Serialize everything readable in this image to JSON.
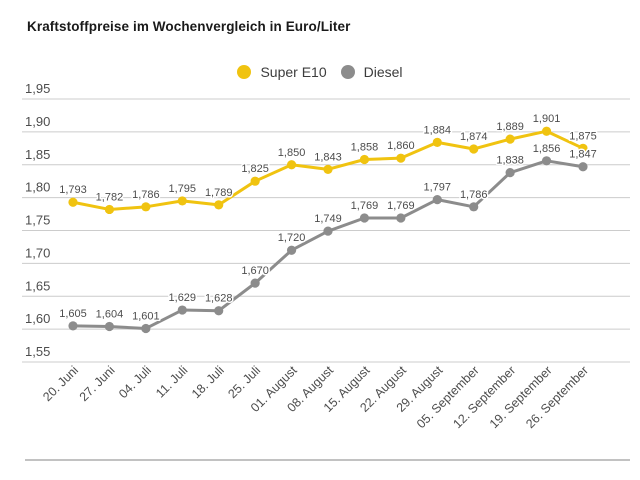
{
  "title": "Kraftstoffpreise im Wochenvergleich in Euro/Liter",
  "legend": [
    {
      "label": "Super E10",
      "color": "#F0C310"
    },
    {
      "label": "Diesel",
      "color": "#8C8C8C"
    }
  ],
  "chart_data": {
    "type": "line",
    "title": "Kraftstoffpreise im Wochenvergleich in Euro/Liter",
    "xlabel": "",
    "ylabel": "Euro/Liter",
    "categories": [
      "20. Juni",
      "27. Juni",
      "04. Juli",
      "11. Juli",
      "18. Juli",
      "25. Juli",
      "01. August",
      "08. August",
      "15. August",
      "22. August",
      "29. August",
      "05. September",
      "12. September",
      "19. September",
      "26. September"
    ],
    "series": [
      {
        "name": "Super E10",
        "color": "#F0C310",
        "values": [
          1.793,
          1.782,
          1.786,
          1.795,
          1.789,
          1.825,
          1.85,
          1.843,
          1.858,
          1.86,
          1.884,
          1.874,
          1.889,
          1.901,
          1.875
        ]
      },
      {
        "name": "Diesel",
        "color": "#8C8C8C",
        "values": [
          1.605,
          1.604,
          1.601,
          1.629,
          1.628,
          1.67,
          1.72,
          1.749,
          1.769,
          1.769,
          1.797,
          1.786,
          1.838,
          1.856,
          1.847
        ]
      }
    ],
    "ylim": [
      1.55,
      1.95
    ],
    "ytick_step": 0.05,
    "ytick_labels": [
      "1,95",
      "1,90",
      "1,85",
      "1,80",
      "1,75",
      "1,70",
      "1,65",
      "1,60",
      "1,55"
    ],
    "grid": true,
    "legend_position": "top-center",
    "decimal_separator": ",",
    "point_label_decimals": 3
  },
  "colors": {
    "background": "#ffffff",
    "grid": "#cccccc",
    "axis_text": "#4d4d4d",
    "point_label_text": "#4d4d4d",
    "title_text": "#1a1a1a",
    "divider": "#adadad"
  }
}
